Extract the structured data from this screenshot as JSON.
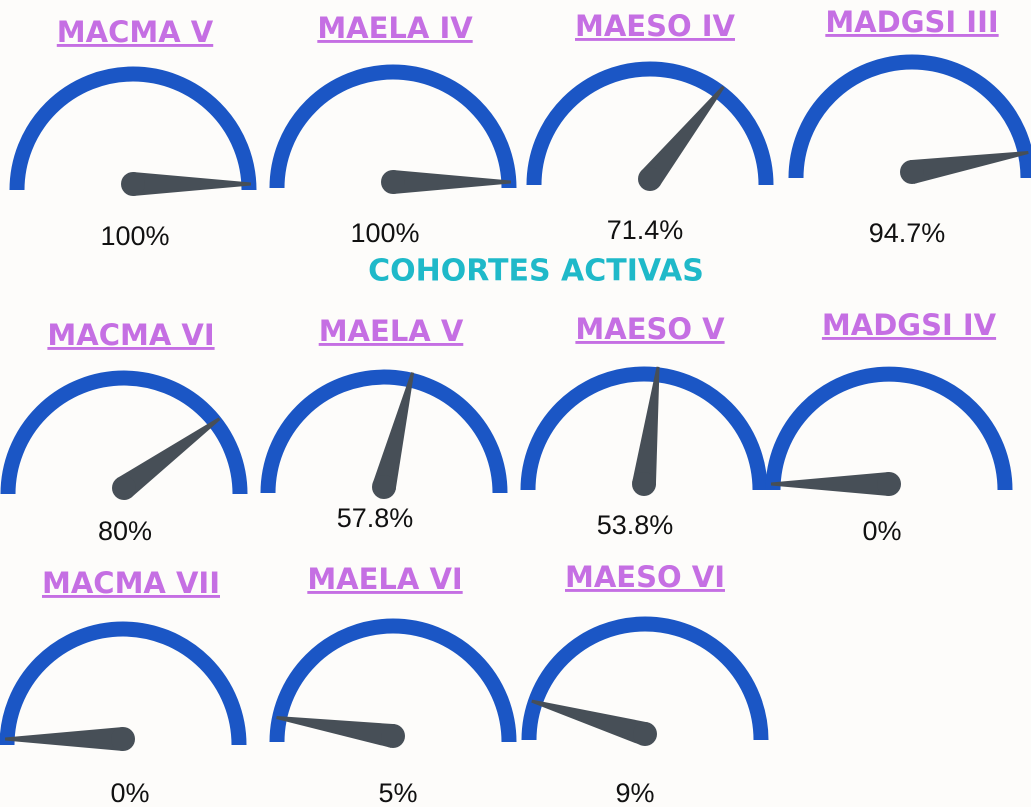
{
  "heading": "COHORTES ACTIVAS",
  "chart_data": [
    {
      "type": "gauge",
      "title": "MACMA V",
      "values": [
        100
      ],
      "value_labels": [
        "100%"
      ],
      "ylim": [
        0,
        100
      ]
    },
    {
      "type": "gauge",
      "title": "MAELA IV",
      "values": [
        100
      ],
      "value_labels": [
        "100%"
      ],
      "ylim": [
        0,
        100
      ]
    },
    {
      "type": "gauge",
      "title": "MAESO IV",
      "values": [
        71.4
      ],
      "value_labels": [
        "71.4%"
      ],
      "ylim": [
        0,
        100
      ]
    },
    {
      "type": "gauge",
      "title": "MADGSI III",
      "values": [
        94.7
      ],
      "value_labels": [
        "94.7%"
      ],
      "ylim": [
        0,
        100
      ]
    },
    {
      "type": "gauge",
      "title": "MACMA VI",
      "values": [
        80
      ],
      "value_labels": [
        "80%"
      ],
      "ylim": [
        0,
        100
      ]
    },
    {
      "type": "gauge",
      "title": "MAELA V",
      "values": [
        57.8
      ],
      "value_labels": [
        "57.8%"
      ],
      "ylim": [
        0,
        100
      ]
    },
    {
      "type": "gauge",
      "title": "MAESO V",
      "values": [
        53.8
      ],
      "value_labels": [
        "53.8%"
      ],
      "ylim": [
        0,
        100
      ]
    },
    {
      "type": "gauge",
      "title": "MADGSI IV",
      "values": [
        0
      ],
      "value_labels": [
        "0%"
      ],
      "ylim": [
        0,
        100
      ]
    },
    {
      "type": "gauge",
      "title": "MACMA VII",
      "values": [
        0
      ],
      "value_labels": [
        "0%"
      ],
      "ylim": [
        0,
        100
      ]
    },
    {
      "type": "gauge",
      "title": "MAELA VI",
      "values": [
        5
      ],
      "value_labels": [
        "5%"
      ],
      "ylim": [
        0,
        100
      ]
    },
    {
      "type": "gauge",
      "title": "MAESO VI",
      "values": [
        9
      ],
      "value_labels": [
        "9%"
      ],
      "ylim": [
        0,
        100
      ]
    }
  ]
}
